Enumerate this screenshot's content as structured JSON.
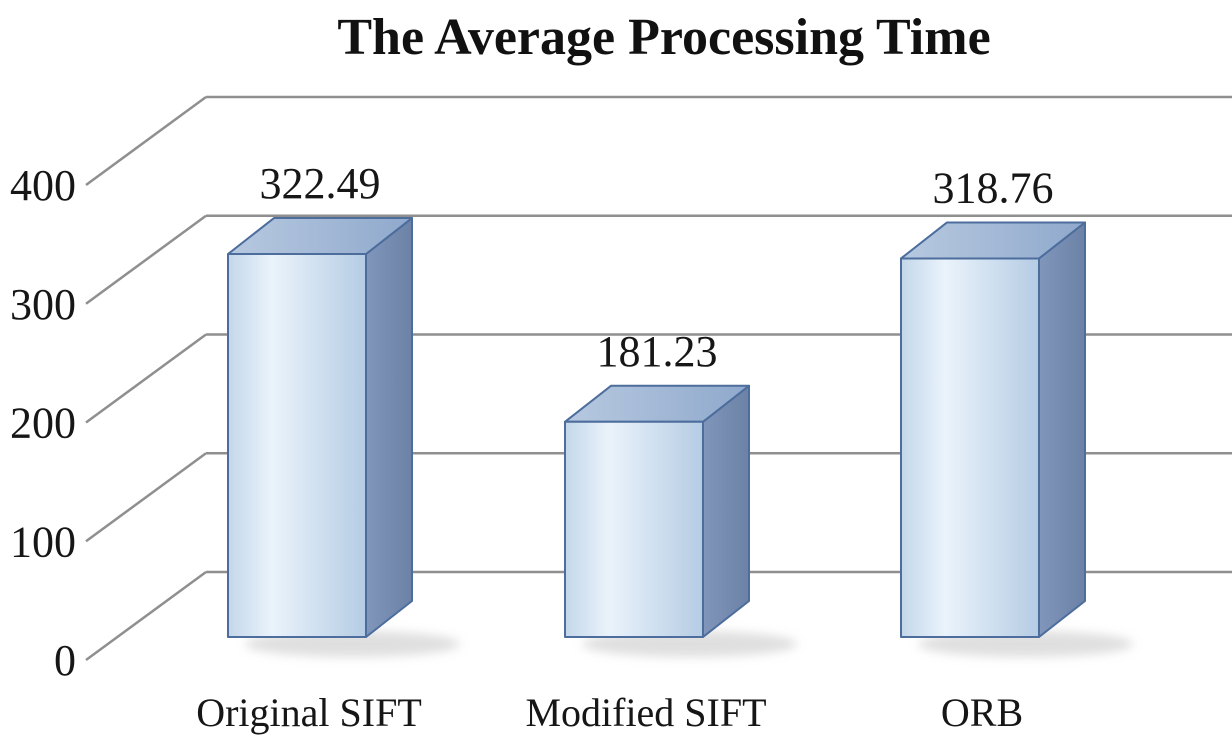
{
  "chart_data": {
    "type": "bar",
    "style": "3d",
    "title": "The Average Processing Time",
    "categories": [
      "Original SIFT",
      "Modified SIFT",
      "ORB"
    ],
    "values": [
      322.49,
      181.23,
      318.76
    ],
    "value_labels": [
      "322.49",
      "181.23",
      "318.76"
    ],
    "xlabel": "",
    "ylabel": "",
    "ylim": [
      0,
      400
    ],
    "yticks": [
      0,
      100,
      200,
      300,
      400
    ],
    "grid": true,
    "legend": false,
    "colors": {
      "background": "#ffffff",
      "text": "#161616",
      "gridline": "#8f8f8f",
      "bar_front": "#c3d7ea",
      "bar_front_light": "#eaf3fb",
      "bar_front_dark": "#b5cce4",
      "bar_top": "#b7c9e0",
      "bar_top_dark": "#8fa9cc",
      "bar_side": "#8096ba",
      "bar_side_dark": "#6b82a6",
      "bar_edge": "#4d6d9d",
      "shadow": "#bfbfbf"
    }
  }
}
